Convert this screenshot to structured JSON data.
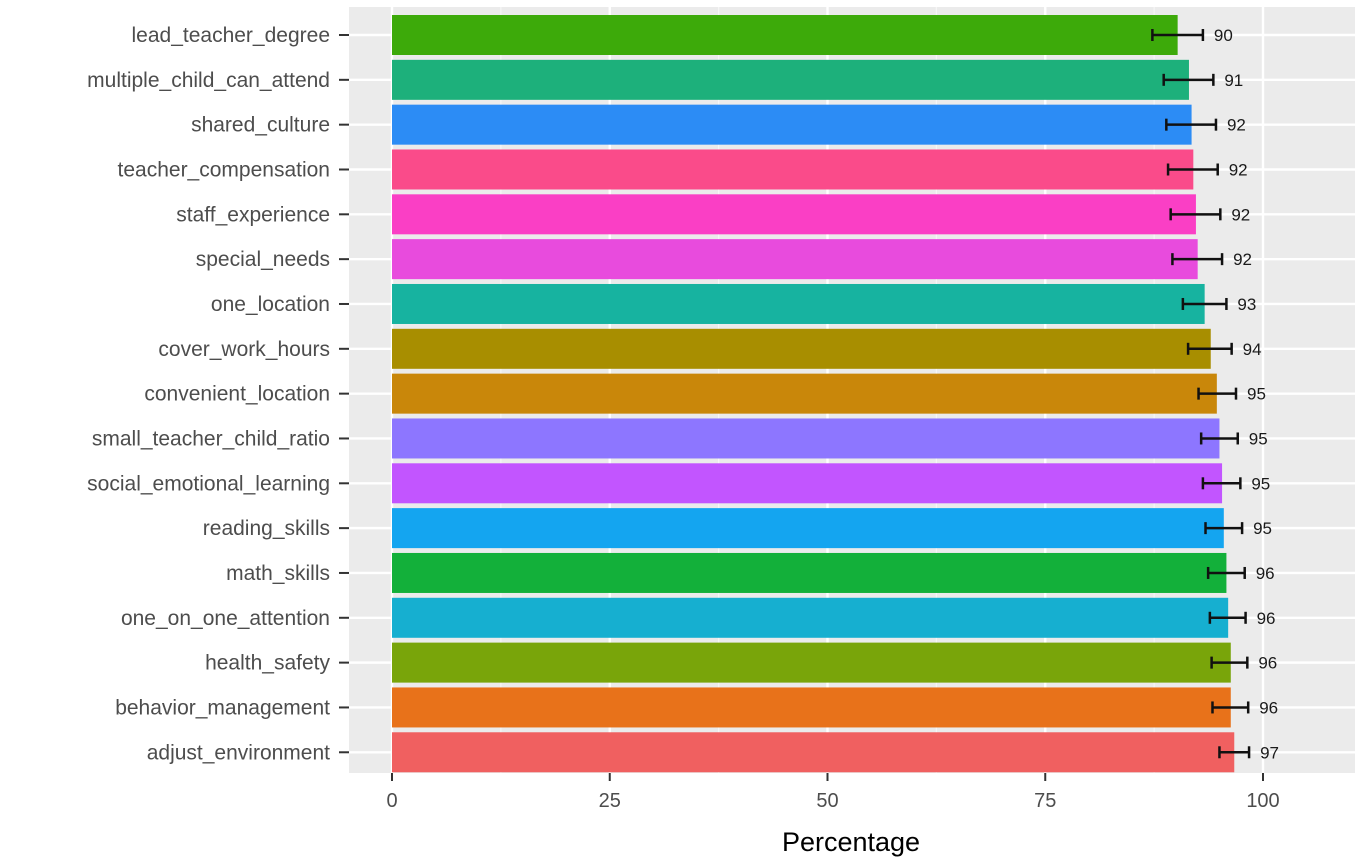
{
  "chart_data": {
    "type": "bar",
    "orientation": "horizontal",
    "xlabel": "Percentage",
    "ylabel": "",
    "xlim": [
      0,
      100
    ],
    "x_ticks": [
      0,
      25,
      50,
      75,
      100
    ],
    "grid": true,
    "legend": "none",
    "categories": [
      "lead_teacher_degree",
      "multiple_child_can_attend",
      "shared_culture",
      "teacher_compensation",
      "staff_experience",
      "special_needs",
      "one_location",
      "cover_work_hours",
      "convenient_location",
      "small_teacher_child_ratio",
      "social_emotional_learning",
      "reading_skills",
      "math_skills",
      "one_on_one_attention",
      "health_safety",
      "behavior_management",
      "adjust_environment"
    ],
    "values": [
      90.2,
      91.5,
      91.8,
      92.0,
      92.3,
      92.5,
      93.3,
      94.0,
      94.7,
      95.0,
      95.3,
      95.5,
      95.8,
      96.0,
      96.3,
      96.3,
      96.7
    ],
    "error_low": [
      87.3,
      88.6,
      88.9,
      89.1,
      89.4,
      89.6,
      90.8,
      91.4,
      92.6,
      92.9,
      93.1,
      93.4,
      93.7,
      93.9,
      94.1,
      94.2,
      95.0
    ],
    "error_high": [
      93.1,
      94.3,
      94.6,
      94.8,
      95.1,
      95.3,
      95.8,
      96.4,
      96.9,
      97.1,
      97.4,
      97.6,
      97.9,
      98.0,
      98.2,
      98.3,
      98.4
    ],
    "labels": [
      "90",
      "91",
      "92",
      "92",
      "92",
      "92",
      "93",
      "94",
      "95",
      "95",
      "95",
      "95",
      "96",
      "96",
      "96",
      "96",
      "97"
    ],
    "colors": [
      "#3DAA0A",
      "#1DB07B",
      "#2C8CF5",
      "#FA4B8A",
      "#FA3FC5",
      "#E84BDD",
      "#17B3A0",
      "#A88E00",
      "#C9870A",
      "#8D76FF",
      "#C255FF",
      "#14A5F0",
      "#13B03A",
      "#16AFD0",
      "#79A50A",
      "#E8721A",
      "#F06060"
    ]
  }
}
